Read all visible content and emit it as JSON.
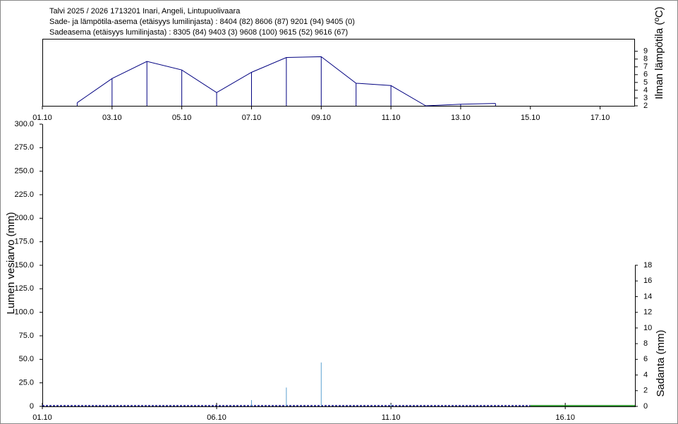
{
  "header": [
    "Talvi 2025 / 2026 1713201 Inari, Angeli, Lintupuolivaara",
    "Sade- ja lämpötila-asema (etäisyys lumilinjasta) :  8404 (82) 8606 (87) 9201 (94) 9405 (0)",
    "Sadeasema (etäisyys lumilinjasta) :  8305 (84) 9403 (3) 9608 (100) 9615 (52) 9616 (67)"
  ],
  "chart_data": [
    {
      "type": "line",
      "y_label": "Ilman lämpötila (ºC)",
      "yaxis_position": "right",
      "xlim": [
        "01.10",
        "18.10"
      ],
      "xticks": [
        "01.10",
        "03.10",
        "05.10",
        "07.10",
        "09.10",
        "11.10",
        "13.10",
        "15.10",
        "17.10"
      ],
      "ylim": [
        2,
        10.6
      ],
      "yticks": [
        2,
        3,
        4,
        5,
        6,
        7,
        8,
        9
      ],
      "series": [
        {
          "color": "#000080",
          "stems": true,
          "x": [
            "02.10",
            "03.10",
            "04.10",
            "05.10",
            "06.10",
            "07.10",
            "08.10",
            "09.10",
            "10.10",
            "11.10",
            "12.10",
            "13.10",
            "14.10"
          ],
          "values": [
            2.4,
            5.5,
            7.7,
            6.6,
            3.7,
            6.3,
            8.2,
            8.3,
            4.9,
            4.6,
            2.0,
            2.2,
            2.3
          ]
        }
      ]
    },
    {
      "type": "combo",
      "y_label": "Lumen vesiarvo (mm)",
      "y2_label": "Sadanta (mm)",
      "xlim": [
        "01.10",
        "18.10"
      ],
      "xticks": [
        "01.10",
        "06.10",
        "11.10",
        "16.10"
      ],
      "ylim": [
        0,
        300
      ],
      "yticks": [
        {
          "value": 0,
          "label": "0"
        },
        {
          "value": 25,
          "label": "25.0"
        },
        {
          "value": 50,
          "label": "50.0"
        },
        {
          "value": 75,
          "label": "75.0"
        },
        {
          "value": 100,
          "label": "100.0"
        },
        {
          "value": 125,
          "label": "125.0"
        },
        {
          "value": 150,
          "label": "150.0"
        },
        {
          "value": 175,
          "label": "175.0"
        },
        {
          "value": 200,
          "label": "200.0"
        },
        {
          "value": 225,
          "label": "225.0"
        },
        {
          "value": 250,
          "label": "250.0"
        },
        {
          "value": 275,
          "label": "275.0"
        },
        {
          "value": 300,
          "label": "300.0"
        }
      ],
      "y2lim": [
        0,
        36
      ],
      "y2ticks": [
        0,
        2,
        4,
        6,
        8,
        10,
        12,
        14,
        16,
        18
      ],
      "series": [
        {
          "kind": "line",
          "style": "dashed",
          "color": "#000080",
          "x": [
            "01.10",
            "15.10"
          ],
          "values": [
            0,
            0
          ]
        },
        {
          "kind": "line",
          "style": "solid",
          "color": "#008000",
          "x": [
            "15.10",
            "18.10"
          ],
          "values": [
            0,
            0
          ]
        },
        {
          "kind": "bar",
          "axis": "y2",
          "color": "#5aa0d0",
          "x": [
            "07.10",
            "08.10",
            "09.10",
            "11.10"
          ],
          "values": [
            0.8,
            2.4,
            5.6,
            0.3
          ]
        }
      ]
    }
  ]
}
